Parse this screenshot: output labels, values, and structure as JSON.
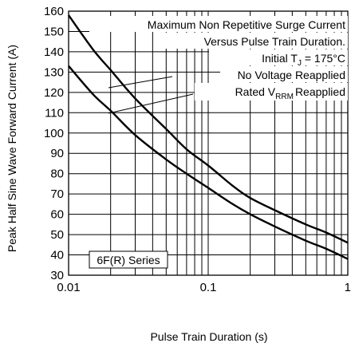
{
  "chart_data": {
    "type": "line",
    "xlabel": "Pulse Train Duration (s)",
    "ylabel": "Peak Half Sine Wave Forward Current (A)",
    "xscale": "log",
    "xlim": [
      0.01,
      1
    ],
    "ylim": [
      30,
      160
    ],
    "grid": true,
    "x_tick_labels": [
      "0.01",
      "0.1",
      "1"
    ],
    "y_ticks": [
      30,
      40,
      50,
      60,
      70,
      80,
      90,
      100,
      110,
      120,
      130,
      140,
      150,
      160
    ],
    "annotations": [
      "Maximum Non Repetitive Surge Current",
      "Versus Pulse Train Duration.",
      "Initial T",
      "J",
      " = 175°C"
    ],
    "series_label_text": {
      "no_voltage": "No Voltage Reapplied",
      "rated_prefix": "Rated V",
      "rated_sub": "RRM",
      "rated_suffix": "Reapplied"
    },
    "box_label": "6F(R) Series",
    "series": [
      {
        "name": "No Voltage Reapplied",
        "x": [
          0.01,
          0.015,
          0.02,
          0.03,
          0.05,
          0.07,
          0.1,
          0.15,
          0.2,
          0.3,
          0.5,
          0.7,
          1
        ],
        "y": [
          158,
          141,
          131,
          117,
          102,
          92,
          84,
          74,
          68,
          62,
          55,
          51,
          46
        ]
      },
      {
        "name": "Rated VRRM Reapplied",
        "x": [
          0.01,
          0.015,
          0.02,
          0.03,
          0.05,
          0.07,
          0.1,
          0.15,
          0.2,
          0.3,
          0.5,
          0.7,
          1
        ],
        "y": [
          133,
          119,
          111,
          99,
          87,
          80,
          73,
          65,
          60,
          54,
          47,
          43,
          38
        ]
      }
    ]
  }
}
